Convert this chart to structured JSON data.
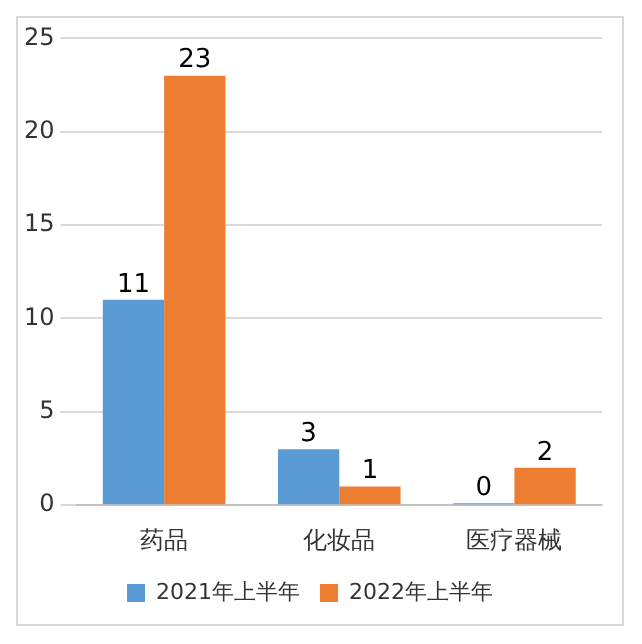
{
  "chart_data": {
    "type": "bar",
    "categories": [
      "药品",
      "化妆品",
      "医疗器械"
    ],
    "series": [
      {
        "name": "2021年上半年",
        "color": "#5b9bd5",
        "values": [
          11,
          3,
          0
        ]
      },
      {
        "name": "2022年上半年",
        "color": "#ed7d31",
        "values": [
          23,
          1,
          2
        ]
      }
    ],
    "ylim": [
      0,
      25
    ],
    "yticks": [
      0,
      5,
      10,
      15,
      20,
      25
    ],
    "grid": "y",
    "legend": "bottom",
    "data_labels": true
  }
}
